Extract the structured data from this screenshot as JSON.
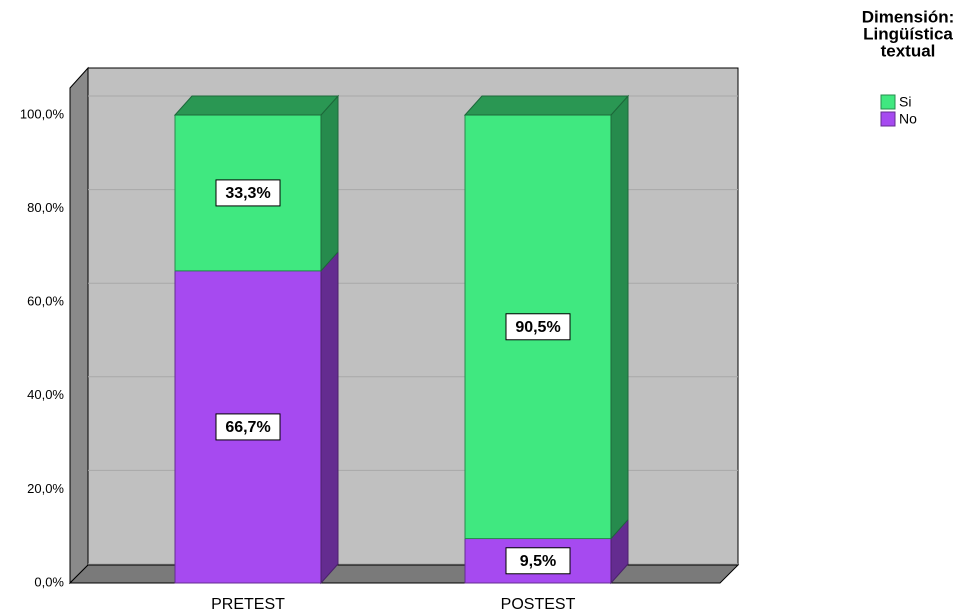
{
  "chart_data": {
    "type": "stacked_bar_3d",
    "categories": [
      "PRETEST",
      "POSTEST"
    ],
    "series": [
      {
        "name": "No",
        "color": "#a64af0",
        "values": [
          66.7,
          9.5
        ],
        "value_labels": [
          "66,7%",
          "9,5%"
        ]
      },
      {
        "name": "Si",
        "color": "#40e880",
        "values": [
          33.3,
          90.5
        ],
        "value_labels": [
          "33,3%",
          "90,5%"
        ]
      }
    ],
    "ylim": [
      0,
      100
    ],
    "yticks": [
      {
        "value": 0,
        "label": "0,0%"
      },
      {
        "value": 20,
        "label": "20,0%"
      },
      {
        "value": 40,
        "label": "40,0%"
      },
      {
        "value": 60,
        "label": "60,0%"
      },
      {
        "value": 80,
        "label": "80,0%"
      },
      {
        "value": 100,
        "label": "100,0%"
      }
    ],
    "grid": true,
    "legend_title": [
      "Dimensión:",
      "Lingüística",
      "textual"
    ],
    "legend_order": [
      "Si",
      "No"
    ]
  }
}
